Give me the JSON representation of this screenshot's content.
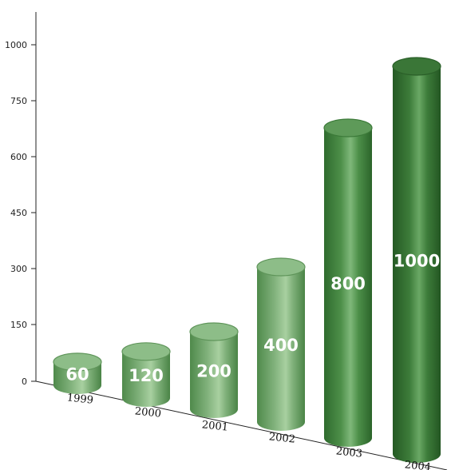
{
  "chart_data": {
    "type": "bar",
    "categories": [
      "1999",
      "2000",
      "2001",
      "2002",
      "2003",
      "2004"
    ],
    "values": [
      60,
      120,
      200,
      400,
      800,
      1000
    ],
    "data_labels": [
      "60",
      "120",
      "200",
      "400",
      "800",
      "1000"
    ],
    "y_ticks": [
      "0",
      "150",
      "300",
      "450",
      "600",
      "750",
      "1000"
    ],
    "title": "",
    "xlabel": "",
    "ylabel": "",
    "grid": false,
    "legend": "none",
    "colors": {
      "bar_light": "#7fb07a",
      "bar_mid": "#5e9858",
      "bar_dark": "#2f6b2e",
      "bar_highlight": "#a8d0a0"
    }
  }
}
